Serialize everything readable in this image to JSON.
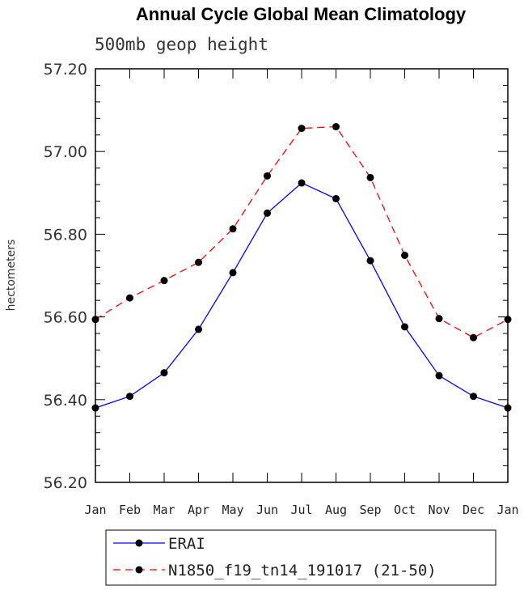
{
  "chart_data": {
    "type": "line",
    "title": "Annual Cycle Global Mean Climatology",
    "subtitle": "500mb geop height",
    "ylabel": "hectometers",
    "xlabel": "",
    "categories": [
      "Jan",
      "Feb",
      "Mar",
      "Apr",
      "May",
      "Jun",
      "Jul",
      "Aug",
      "Sep",
      "Oct",
      "Nov",
      "Dec",
      "Jan"
    ],
    "ylim": [
      56.2,
      57.2
    ],
    "yticks": [
      "56.20",
      "56.40",
      "56.60",
      "56.80",
      "57.00",
      "57.20"
    ],
    "series": [
      {
        "name": "ERAI",
        "color": "#0000ff",
        "style": "solid",
        "values": [
          56.38,
          56.408,
          56.465,
          56.57,
          56.707,
          56.851,
          56.924,
          56.886,
          56.736,
          56.576,
          56.458,
          56.408,
          56.38
        ]
      },
      {
        "name": "N1850_f19_tn14_191017 (21-50)",
        "color": "#ff0000",
        "style": "dashed",
        "values": [
          56.594,
          56.646,
          56.688,
          56.732,
          56.813,
          56.941,
          57.056,
          57.06,
          56.937,
          56.749,
          56.596,
          56.55,
          56.594
        ]
      }
    ],
    "legend_position": "bottom"
  }
}
